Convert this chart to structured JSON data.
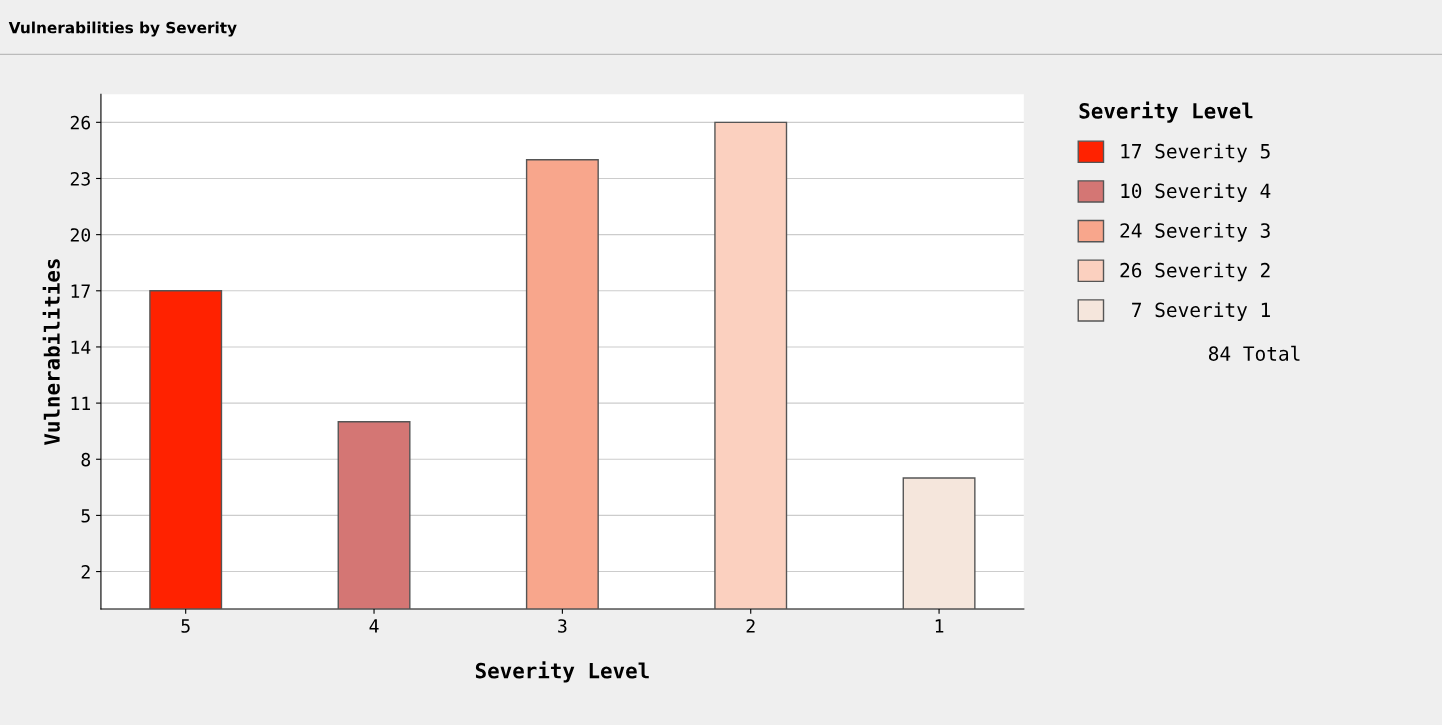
{
  "chart_data": {
    "type": "bar",
    "title": "Vulnerabilities by Severity",
    "xlabel": "Severity Level",
    "ylabel": "Vulnerabilities",
    "legend_title": "Severity Level",
    "categories": [
      "5",
      "4",
      "3",
      "2",
      "1"
    ],
    "series": [
      {
        "name": "17 Severity 5",
        "color": "#ff2200",
        "values": [
          17,
          null,
          null,
          null,
          null
        ]
      },
      {
        "name": "10 Severity 4",
        "color": "#d47674",
        "values": [
          null,
          10,
          null,
          null,
          null
        ]
      },
      {
        "name": "24 Severity 3",
        "color": "#f8a68c",
        "values": [
          null,
          null,
          24,
          null,
          null
        ]
      },
      {
        "name": "26 Severity 2",
        "color": "#fbd0bf",
        "values": [
          null,
          null,
          null,
          26,
          null
        ]
      },
      {
        "name": " 7 Severity 1",
        "color": "#f5e6dc",
        "values": [
          null,
          null,
          null,
          null,
          7
        ]
      }
    ],
    "ylim": [
      0,
      27.5
    ],
    "yticks": [
      2,
      5,
      8,
      11,
      14,
      17,
      20,
      23,
      26
    ],
    "grid": "y",
    "legend": "right",
    "annotations": [
      "84 Total"
    ]
  }
}
